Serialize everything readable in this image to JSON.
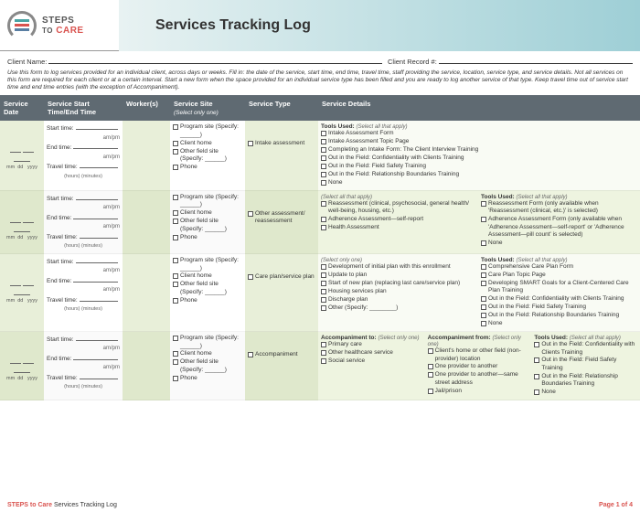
{
  "header": {
    "logo_top": "STEPS",
    "logo_mid": "TO",
    "logo_bot": "CARE",
    "bar_colors": [
      "#4aa3a3",
      "#d9534f",
      "#5a7fa3"
    ],
    "title": "Services Tracking Log"
  },
  "client": {
    "name_label": "Client Name:",
    "record_label": "Client Record #:"
  },
  "instructions": "Use this form to log services provided for an individual client, across days or weeks. Fill in: the date of the service, start time, end time, travel time, staff providing the service, location, service type, and service details. Not all services on this form are required for each client or at a certain interval. Start a new form when the space provided for an individual service type has been filled and you are ready to log another service of that type. Keep travel time out of service start time and end time entries (with the exception of Accompaniment).",
  "columns": {
    "date": "Service Date",
    "time": "Service Start Time/End Time",
    "worker": "Worker(s)",
    "site": "Service Site",
    "site_sub": "(Select only one)",
    "type": "Service Type",
    "details": "Service Details"
  },
  "time_labels": {
    "start": "Start time:",
    "end": "End time:",
    "travel": "Travel time:",
    "ampm": "am/pm",
    "hm": "(hours) (minutes)"
  },
  "date_labels": {
    "mm": "mm",
    "dd": "dd",
    "yyyy": "yyyy"
  },
  "site_options": [
    "Program site (Specify: ______)",
    "Client home",
    "Other field site (Specify: ______)",
    "Phone"
  ],
  "rows": [
    {
      "type_items": [
        "Intake assessment"
      ],
      "details": {
        "cols": [
          {
            "header": "Tools Used:",
            "hint": "(Select all that apply)",
            "items": [
              "Intake Assessment Form",
              "Intake Assessment Topic Page",
              "Completing an Intake Form: The Client Interview Training",
              "Out in the Field: Confidentiality with Clients Training",
              "Out in the Field: Field Safety Training",
              "Out in the Field: Relationship Boundaries Training",
              "None"
            ]
          }
        ]
      }
    },
    {
      "type_items": [
        "Other assessment/ reassessment"
      ],
      "details": {
        "cols": [
          {
            "hint": "(Select all that apply)",
            "items": [
              "Reassessment (clinical, psychosocial, general health/ well-being, housing, etc.)",
              "Adherence Assessment—self-report",
              "Health Assessment"
            ]
          },
          {
            "header": "Tools Used:",
            "hint": "(Select all that apply)",
            "items": [
              "Reassessment Form (only available when 'Reassessment (clinical, etc.)' is selected)",
              "Adherence Assessment Form (only available when 'Adherence Assessment—self-report' or 'Adherence Assessment—pill count' is selected)",
              "None"
            ]
          }
        ]
      }
    },
    {
      "type_items": [
        "Care plan/service plan"
      ],
      "details": {
        "cols": [
          {
            "hint": "(Select only one)",
            "items": [
              "Development of initial plan with this enrollment",
              "Update to plan",
              "Start of new plan (replacing last care/service plan)",
              "Housing services plan",
              "Discharge plan",
              "Other (Specify: ________)"
            ]
          },
          {
            "header": "Tools Used:",
            "hint": "(Select all that apply)",
            "items": [
              "Comprehensive Care Plan Form",
              "Care Plan Topic Page",
              "Developing SMART Goals for a Client-Centered Care Plan Training",
              "Out in the Field: Confidentiality with Clients Training",
              "Out in the Field: Field Safety Training",
              "Out in the Field: Relationship Boundaries Training",
              "None"
            ]
          }
        ]
      }
    },
    {
      "type_items": [
        "Accompaniment"
      ],
      "details": {
        "cols": [
          {
            "header": "Accompaniment to:",
            "hint": "(Select only one)",
            "items": [
              "Primary care",
              "Other healthcare service",
              "Social service"
            ]
          },
          {
            "header": "Accompaniment from:",
            "hint": "(Select only one)",
            "items": [
              "Client's home or other field (non-provider) location",
              "One provider to another",
              "One provider to another—same street address",
              "Jail/prison"
            ]
          },
          {
            "header": "Tools Used:",
            "hint": "(Select all that apply)",
            "items": [
              "Out in the Field: Confidentiality with Clients Training",
              "Out in the Field: Field Safety Training",
              "Out in the Field: Relationship Boundaries Training",
              "None"
            ]
          }
        ]
      }
    }
  ],
  "footer": {
    "brand": "STEPS to Care",
    "doc": "Services Tracking Log",
    "page": "Page 1 of 4"
  }
}
